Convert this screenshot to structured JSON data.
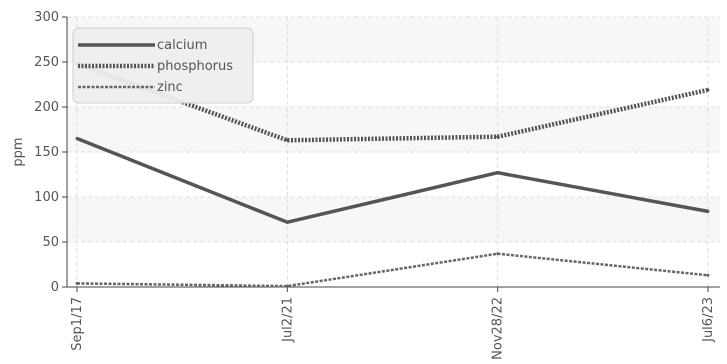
{
  "chart_data": {
    "type": "line",
    "ylabel": "ppm",
    "xlabel": "",
    "categories": [
      "Sep1/17",
      "Jul2/21",
      "Nov28/22",
      "Jul6/23"
    ],
    "ylim": [
      0,
      300
    ],
    "y_ticks": [
      0,
      50,
      100,
      150,
      200,
      250,
      300
    ],
    "grid": true,
    "legend_position": "top-left",
    "series": [
      {
        "name": "calcium",
        "style": "solid",
        "color": "#555555",
        "values": [
          165,
          72,
          127,
          84
        ]
      },
      {
        "name": "phosphorus",
        "style": "dotted",
        "color": "#555555",
        "values": [
          248,
          163,
          167,
          219
        ]
      },
      {
        "name": "zinc",
        "style": "dashed",
        "color": "#666666",
        "values": [
          4,
          1,
          37,
          13
        ]
      }
    ]
  }
}
